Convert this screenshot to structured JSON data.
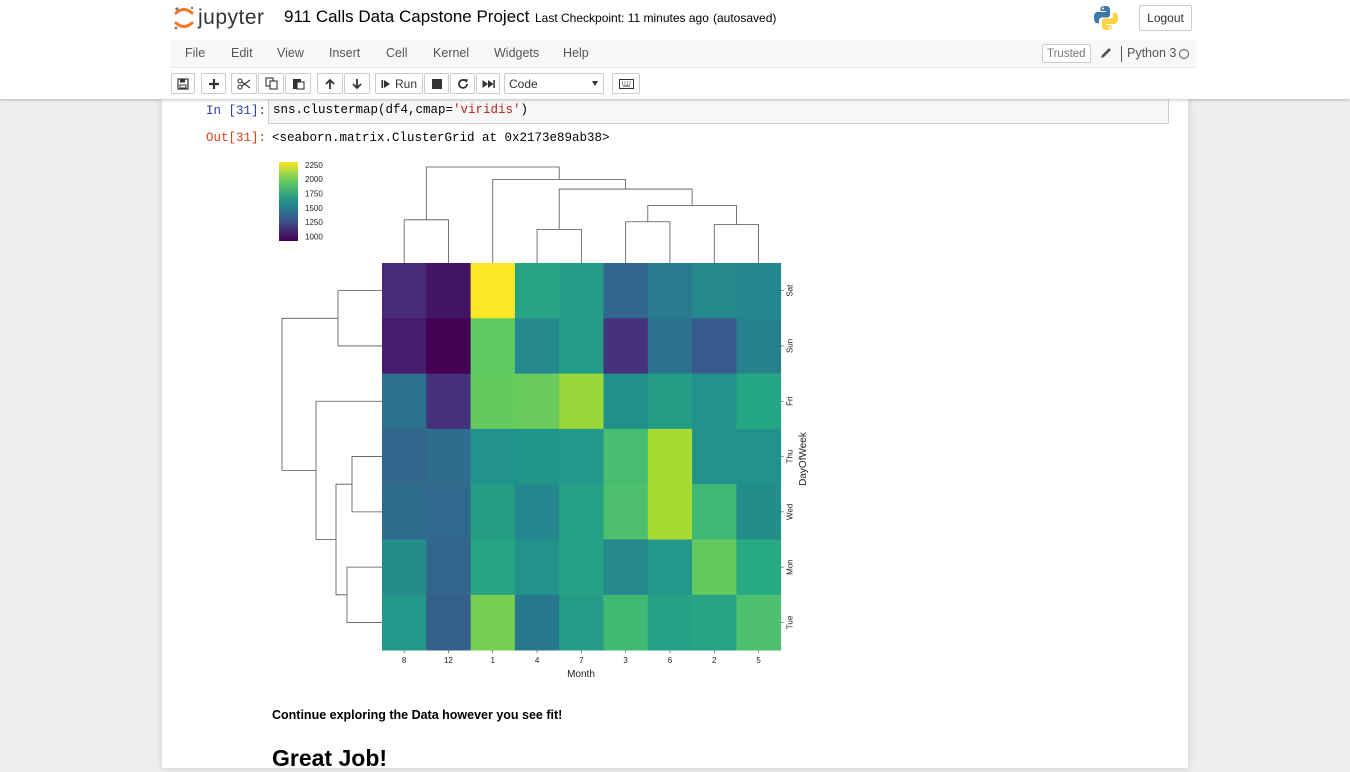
{
  "header": {
    "logo_text": "jupyter",
    "notebook_name": "911 Calls Data Capstone Project",
    "checkpoint": "Last Checkpoint: 11 minutes ago",
    "autosave": "(autosaved)",
    "logout_label": "Logout"
  },
  "menubar": {
    "items": [
      "File",
      "Edit",
      "View",
      "Insert",
      "Cell",
      "Kernel",
      "Widgets",
      "Help"
    ],
    "trusted_label": "Trusted",
    "kernel_name": "Python 3"
  },
  "toolbar": {
    "run_label": "Run",
    "cell_type": "Code"
  },
  "cell": {
    "in_prompt": "In [31]:",
    "code_prefix": "sns.clustermap(df4,cmap=",
    "code_string": "'viridis'",
    "code_suffix": ")",
    "out_prompt": "Out[31]:",
    "output_text": "<seaborn.matrix.ClusterGrid at 0x2173e89ab38>"
  },
  "markdown": {
    "text": "Continue exploring the Data however you see fit!",
    "heading": "Great Job!"
  },
  "chart_data": {
    "type": "heatmap",
    "title": "",
    "xlabel": "Month",
    "ylabel": "DayOfWeek",
    "x": [
      "8",
      "12",
      "1",
      "4",
      "7",
      "3",
      "6",
      "2",
      "5"
    ],
    "y": [
      "Sat",
      "Sun",
      "Fri",
      "Thu",
      "Wed",
      "Mon",
      "Tue"
    ],
    "values": [
      [
        1050,
        960,
        2290,
        1700,
        1650,
        1350,
        1460,
        1540,
        1530
      ],
      [
        990,
        880,
        1940,
        1540,
        1650,
        1080,
        1410,
        1280,
        1490
      ],
      [
        1400,
        1080,
        1950,
        1960,
        2070,
        1580,
        1660,
        1600,
        1720
      ],
      [
        1340,
        1380,
        1590,
        1610,
        1630,
        1860,
        2100,
        1590,
        1600
      ],
      [
        1370,
        1360,
        1670,
        1520,
        1690,
        1880,
        2100,
        1830,
        1560
      ],
      [
        1560,
        1340,
        1700,
        1600,
        1680,
        1540,
        1630,
        1950,
        1730
      ],
      [
        1630,
        1310,
        1990,
        1450,
        1650,
        1840,
        1680,
        1700,
        1880
      ]
    ],
    "colorbar": {
      "min": 1000,
      "max": 2250,
      "ticks": [
        "2250",
        "2000",
        "1750",
        "1500",
        "1250",
        "1000"
      ]
    },
    "cmap": "viridis",
    "col_dendrogram": {
      "leaf_order": [
        "8",
        "12",
        "1",
        "4",
        "7",
        "3",
        "6",
        "2",
        "5"
      ],
      "merges": [
        {
          "left": "4",
          "right": "7",
          "height": 0.35
        },
        {
          "left": "2",
          "right": "5",
          "height": 0.4
        },
        {
          "left": "3",
          "right": "6",
          "height": 0.43
        },
        {
          "left": "3+6",
          "right": "2+5",
          "height": 0.6
        },
        {
          "left": "4+7",
          "right": "3+6+2+5",
          "height": 0.77
        },
        {
          "left": "8",
          "right": "12",
          "height": 0.45
        },
        {
          "left": "1",
          "right": "4+7+3+6+2+5",
          "height": 0.87
        },
        {
          "left": "8+12",
          "right": "1+4+7+3+6+2+5",
          "height": 1.0
        }
      ]
    },
    "row_dendrogram": {
      "leaf_order": [
        "Sat",
        "Sun",
        "Fri",
        "Thu",
        "Wed",
        "Mon",
        "Tue"
      ],
      "merges": [
        {
          "left": "Thu",
          "right": "Wed",
          "height": 0.3
        },
        {
          "left": "Mon",
          "right": "Tue",
          "height": 0.35
        },
        {
          "left": "Thu+Wed",
          "right": "Mon+Tue",
          "height": 0.46
        },
        {
          "left": "Sat",
          "right": "Sun",
          "height": 0.44
        },
        {
          "left": "Fri",
          "right": "Thu+Wed+Mon+Tue",
          "height": 0.66
        },
        {
          "left": "Sat+Sun",
          "right": "Fri+Thu+Wed+Mon+Tue",
          "height": 1.0
        }
      ]
    }
  }
}
